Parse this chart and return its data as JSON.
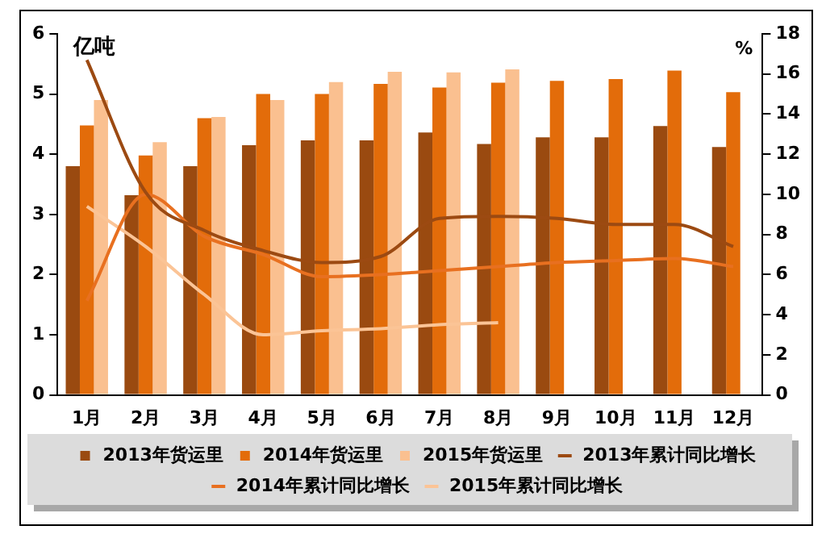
{
  "chart_data": {
    "type": "bar",
    "ylabel": "亿吨",
    "y2label": "%",
    "categories": [
      "1月",
      "2月",
      "3月",
      "4月",
      "5月",
      "6月",
      "7月",
      "8月",
      "9月",
      "10月",
      "11月",
      "12月"
    ],
    "series": [
      {
        "name": "2013年货运里",
        "color": "#9a4a10",
        "values": [
          3.8,
          3.32,
          3.8,
          4.15,
          4.23,
          4.23,
          4.36,
          4.17,
          4.28,
          4.28,
          4.47,
          4.12
        ]
      },
      {
        "name": "2014年货运里",
        "color": "#e36c0a",
        "values": [
          4.48,
          3.98,
          4.6,
          5.0,
          5.0,
          5.17,
          5.11,
          5.19,
          5.22,
          5.25,
          5.39,
          5.03
        ]
      },
      {
        "name": "2015年货运里",
        "color": "#fac090",
        "values": [
          4.9,
          4.2,
          4.62,
          4.9,
          5.2,
          5.37,
          5.36,
          5.41,
          null,
          null,
          null,
          null
        ]
      },
      {
        "name": "2013年累计同比增长",
        "type": "line",
        "axis": "y2",
        "color": "#9c4a12",
        "values": [
          16.7,
          10.1,
          8.2,
          7.2,
          6.6,
          6.9,
          8.8,
          8.9,
          8.8,
          8.5,
          8.5,
          7.4
        ]
      },
      {
        "name": "2014年累计同比增长",
        "type": "line",
        "axis": "y2",
        "color": "#e87020",
        "values": [
          4.7,
          10.0,
          7.9,
          7.0,
          5.9,
          6.0,
          6.2,
          6.4,
          6.6,
          6.7,
          6.8,
          6.4
        ]
      },
      {
        "name": "2015年累计同比增长",
        "type": "line",
        "axis": "y2",
        "color": "#fbc496",
        "values": [
          9.4,
          7.4,
          5.0,
          3.0,
          3.2,
          3.3,
          3.5,
          3.6,
          null,
          null,
          null,
          null
        ]
      }
    ],
    "ylim": [
      0,
      6
    ],
    "yticks": [
      0,
      1,
      2,
      3,
      4,
      5,
      6
    ],
    "y2lim": [
      0,
      18
    ],
    "y2ticks": [
      0,
      2,
      4,
      6,
      8,
      10,
      12,
      14,
      16,
      18
    ],
    "grid": false,
    "legend": "bottom",
    "marker": "none",
    "line_style": "solid"
  }
}
